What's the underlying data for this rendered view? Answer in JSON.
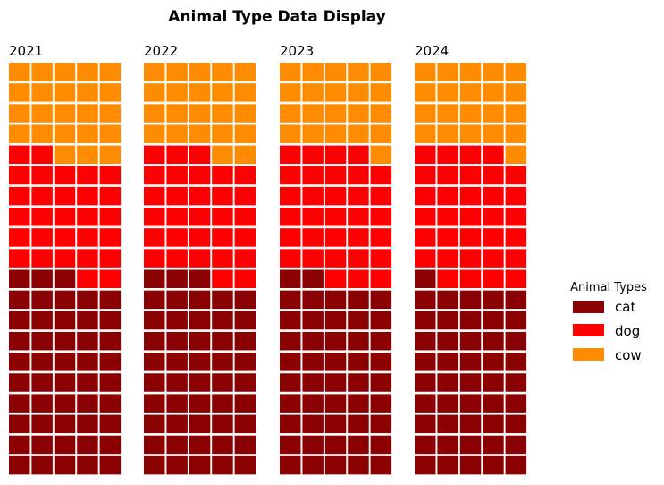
{
  "chart_data": {
    "type": "waffle",
    "title": "Animal Type Data Display",
    "categories": [
      "cat",
      "dog",
      "cow"
    ],
    "colors": {
      "cat": "#8b0000",
      "dog": "#ff0000",
      "cow": "#ff8c00"
    },
    "grid": {
      "rows": 20,
      "columns": 5,
      "fill_order": "bottom-to-top, left-to-right"
    },
    "panels": [
      {
        "label": "2021",
        "values": {
          "cat": 48,
          "dog": 29,
          "cow": 23
        }
      },
      {
        "label": "2022",
        "values": {
          "cat": 48,
          "dog": 30,
          "cow": 22
        }
      },
      {
        "label": "2023",
        "values": {
          "cat": 47,
          "dog": 32,
          "cow": 21
        }
      },
      {
        "label": "2024",
        "values": {
          "cat": 46,
          "dog": 33,
          "cow": 21
        }
      }
    ],
    "legend": {
      "title": "Animal Types",
      "placement": "right",
      "entries": [
        "cat",
        "dog",
        "cow"
      ]
    }
  }
}
